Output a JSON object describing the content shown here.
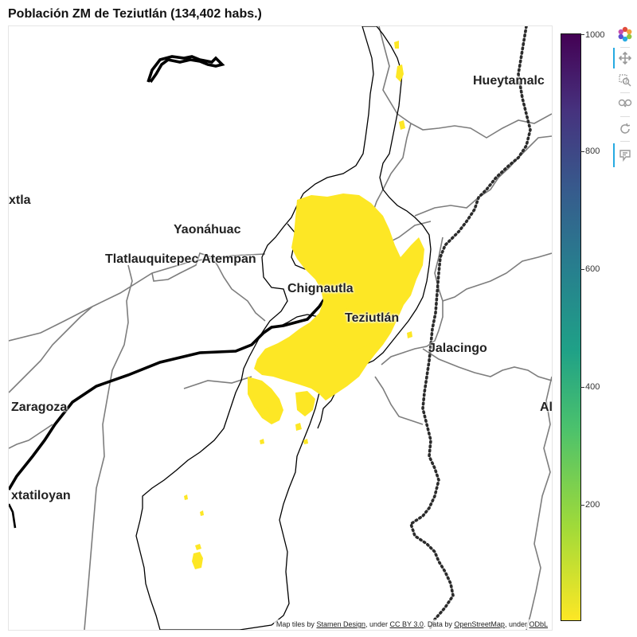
{
  "title": "Población ZM de Teziutlán (134,402 habs.)",
  "map": {
    "places": [
      {
        "name": "Hueytamalc"
      },
      {
        "name": "xtla"
      },
      {
        "name": "Yaonáhuac"
      },
      {
        "name": "Tlatlauquitepec Atempan"
      },
      {
        "name": "Chignautla"
      },
      {
        "name": "Teziutlán"
      },
      {
        "name": "Jalacingo"
      },
      {
        "name": "Zaragoza"
      },
      {
        "name": "Al"
      },
      {
        "name": "xtatiloyan"
      }
    ],
    "attribution": {
      "prefix": "Map tiles by ",
      "stamen": "Stamen Design",
      "under1": ", under ",
      "ccby": "CC BY 3.0",
      "data": ". Data by ",
      "osm": "OpenStreetMap",
      "under2": ", under ",
      "odbl": "ODbL"
    },
    "density_fill": "#fde725"
  },
  "colorbar": {
    "ticks": [
      "1000",
      "800",
      "600",
      "400",
      "200"
    ],
    "tick_values": [
      1000,
      800,
      600,
      400,
      200
    ],
    "range": [
      0,
      1000
    ],
    "palette": "viridis"
  },
  "toolbar": {
    "tools": [
      {
        "icon": "bokeh-logo-icon",
        "active": false
      },
      {
        "icon": "pan-icon",
        "active": true
      },
      {
        "icon": "box-zoom-icon",
        "active": false
      },
      {
        "icon": "wheel-zoom-icon",
        "active": false
      },
      {
        "icon": "reset-icon",
        "active": false
      },
      {
        "icon": "hover-icon",
        "active": true
      }
    ]
  }
}
